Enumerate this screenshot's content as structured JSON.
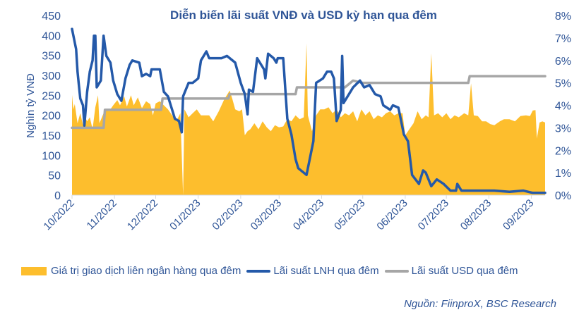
{
  "chart_data": {
    "type": "area+line",
    "title": "Diễn biến lãi suất VNĐ và USD kỳ hạn qua đêm",
    "ylabel_left": "Nghìn tỷ VNĐ",
    "ylim_left": [
      0,
      450
    ],
    "yticks_left": [
      "0",
      "50",
      "100",
      "150",
      "200",
      "250",
      "300",
      "350",
      "400",
      "450"
    ],
    "ylim_right": [
      0,
      8
    ],
    "yticks_right": [
      "0%",
      "1%",
      "2%",
      "3%",
      "4%",
      "5%",
      "6%",
      "7%",
      "8%"
    ],
    "xlim": [
      "2022-10-01",
      "2023-09-11"
    ],
    "xticks": [
      {
        "date": "2022-10-01",
        "label": "10/2022"
      },
      {
        "date": "2022-11-01",
        "label": "11/2022"
      },
      {
        "date": "2022-12-01",
        "label": "12/2022"
      },
      {
        "date": "2023-01-01",
        "label": "01/2023"
      },
      {
        "date": "2023-02-01",
        "label": "02/2023"
      },
      {
        "date": "2023-03-01",
        "label": "03/2023"
      },
      {
        "date": "2023-04-01",
        "label": "04/2023"
      },
      {
        "date": "2023-05-01",
        "label": "05/2023"
      },
      {
        "date": "2023-06-01",
        "label": "06/2023"
      },
      {
        "date": "2023-07-01",
        "label": "07/2023"
      },
      {
        "date": "2023-08-01",
        "label": "08/2023"
      },
      {
        "date": "2023-09-01",
        "label": "09/2023"
      }
    ],
    "grid": false,
    "legend_position": "bottom",
    "series": [
      {
        "name": "Giá trị giao dịch liên ngân hàng qua đêm",
        "type": "area",
        "axis": "left",
        "color": "#FDBE2D",
        "points": [
          [
            "2022-10-01",
            251
          ],
          [
            "2022-10-02",
            215
          ],
          [
            "2022-10-03",
            228
          ],
          [
            "2022-10-05",
            180
          ],
          [
            "2022-10-07",
            205
          ],
          [
            "2022-10-09",
            176
          ],
          [
            "2022-10-10",
            200
          ],
          [
            "2022-10-12",
            185
          ],
          [
            "2022-10-14",
            195
          ],
          [
            "2022-10-16",
            165
          ],
          [
            "2022-10-18",
            220
          ],
          [
            "2022-10-20",
            250
          ],
          [
            "2022-10-21",
            180
          ],
          [
            "2022-10-24",
            205
          ],
          [
            "2022-10-26",
            215
          ],
          [
            "2022-10-28",
            210
          ],
          [
            "2022-10-31",
            225
          ],
          [
            "2022-11-03",
            238
          ],
          [
            "2022-11-05",
            225
          ],
          [
            "2022-11-08",
            248
          ],
          [
            "2022-11-10",
            222
          ],
          [
            "2022-11-13",
            250
          ],
          [
            "2022-11-15",
            225
          ],
          [
            "2022-11-18",
            245
          ],
          [
            "2022-11-21",
            218
          ],
          [
            "2022-11-24",
            235
          ],
          [
            "2022-11-27",
            228
          ],
          [
            "2022-11-29",
            200
          ],
          [
            "2022-12-01",
            230
          ],
          [
            "2022-12-04",
            235
          ],
          [
            "2022-12-07",
            225
          ],
          [
            "2022-12-10",
            215
          ],
          [
            "2022-12-13",
            200
          ],
          [
            "2022-12-16",
            185
          ],
          [
            "2022-12-19",
            205
          ],
          [
            "2022-12-21",
            0
          ],
          [
            "2022-12-22",
            215
          ],
          [
            "2022-12-25",
            195
          ],
          [
            "2022-12-28",
            205
          ],
          [
            "2022-12-31",
            215
          ],
          [
            "2023-01-03",
            200
          ],
          [
            "2023-01-06",
            200
          ],
          [
            "2023-01-09",
            200
          ],
          [
            "2023-01-12",
            185
          ],
          [
            "2023-01-16",
            210
          ],
          [
            "2023-01-20",
            240
          ],
          [
            "2023-01-24",
            262
          ],
          [
            "2023-01-26",
            240
          ],
          [
            "2023-01-28",
            215
          ],
          [
            "2023-01-31",
            210
          ],
          [
            "2023-02-02",
            215
          ],
          [
            "2023-02-04",
            150
          ],
          [
            "2023-02-06",
            160
          ],
          [
            "2023-02-08",
            165
          ],
          [
            "2023-02-11",
            180
          ],
          [
            "2023-02-14",
            165
          ],
          [
            "2023-02-17",
            185
          ],
          [
            "2023-02-20",
            170
          ],
          [
            "2023-02-23",
            160
          ],
          [
            "2023-02-26",
            175
          ],
          [
            "2023-03-01",
            170
          ],
          [
            "2023-03-04",
            172
          ],
          [
            "2023-03-07",
            190
          ],
          [
            "2023-03-10",
            185
          ],
          [
            "2023-03-13",
            200
          ],
          [
            "2023-03-16",
            190
          ],
          [
            "2023-03-19",
            195
          ],
          [
            "2023-03-21",
            380
          ],
          [
            "2023-03-22",
            200
          ],
          [
            "2023-03-25",
            160
          ],
          [
            "2023-03-28",
            200
          ],
          [
            "2023-03-31",
            215
          ],
          [
            "2023-04-03",
            215
          ],
          [
            "2023-04-06",
            220
          ],
          [
            "2023-04-09",
            205
          ],
          [
            "2023-04-12",
            215
          ],
          [
            "2023-04-15",
            195
          ],
          [
            "2023-04-18",
            205
          ],
          [
            "2023-04-21",
            200
          ],
          [
            "2023-04-24",
            210
          ],
          [
            "2023-04-27",
            185
          ],
          [
            "2023-04-30",
            215
          ],
          [
            "2023-05-03",
            200
          ],
          [
            "2023-05-06",
            210
          ],
          [
            "2023-05-09",
            190
          ],
          [
            "2023-05-12",
            200
          ],
          [
            "2023-05-15",
            195
          ],
          [
            "2023-05-18",
            205
          ],
          [
            "2023-05-21",
            210
          ],
          [
            "2023-05-24",
            200
          ],
          [
            "2023-05-27",
            205
          ],
          [
            "2023-05-30",
            205
          ],
          [
            "2023-06-01",
            150
          ],
          [
            "2023-06-04",
            165
          ],
          [
            "2023-06-07",
            180
          ],
          [
            "2023-06-10",
            210
          ],
          [
            "2023-06-13",
            190
          ],
          [
            "2023-06-16",
            200
          ],
          [
            "2023-06-18",
            195
          ],
          [
            "2023-06-20",
            355
          ],
          [
            "2023-06-22",
            200
          ],
          [
            "2023-06-25",
            205
          ],
          [
            "2023-06-28",
            195
          ],
          [
            "2023-07-01",
            205
          ],
          [
            "2023-07-04",
            190
          ],
          [
            "2023-07-07",
            200
          ],
          [
            "2023-07-10",
            195
          ],
          [
            "2023-07-14",
            205
          ],
          [
            "2023-07-17",
            200
          ],
          [
            "2023-07-19",
            280
          ],
          [
            "2023-07-21",
            200
          ],
          [
            "2023-07-24",
            198
          ],
          [
            "2023-07-27",
            185
          ],
          [
            "2023-07-30",
            185
          ],
          [
            "2023-08-02",
            178
          ],
          [
            "2023-08-05",
            175
          ],
          [
            "2023-08-09",
            185
          ],
          [
            "2023-08-12",
            190
          ],
          [
            "2023-08-16",
            190
          ],
          [
            "2023-08-20",
            185
          ],
          [
            "2023-08-24",
            198
          ],
          [
            "2023-08-28",
            200
          ],
          [
            "2023-08-31",
            198
          ],
          [
            "2023-09-02",
            212
          ],
          [
            "2023-09-04",
            213
          ],
          [
            "2023-09-05",
            142
          ],
          [
            "2023-09-07",
            182
          ],
          [
            "2023-09-09",
            185
          ],
          [
            "2023-09-11",
            182
          ]
        ]
      },
      {
        "name": "Lãi suất LNH qua đêm",
        "type": "line",
        "axis": "right",
        "color": "#2459A9",
        "points": [
          [
            "2022-10-01",
            7.4
          ],
          [
            "2022-10-04",
            6.5
          ],
          [
            "2022-10-05",
            5.5
          ],
          [
            "2022-10-06",
            4.9
          ],
          [
            "2022-10-07",
            4.3
          ],
          [
            "2022-10-09",
            4.0
          ],
          [
            "2022-10-10",
            3.1
          ],
          [
            "2022-10-12",
            4.6
          ],
          [
            "2022-10-14",
            5.5
          ],
          [
            "2022-10-16",
            6.0
          ],
          [
            "2022-10-17",
            7.1
          ],
          [
            "2022-10-18",
            7.1
          ],
          [
            "2022-10-19",
            4.8
          ],
          [
            "2022-10-22",
            5.1
          ],
          [
            "2022-10-24",
            7.1
          ],
          [
            "2022-10-26",
            6.2
          ],
          [
            "2022-10-29",
            5.9
          ],
          [
            "2022-10-31",
            5.1
          ],
          [
            "2022-11-03",
            4.5
          ],
          [
            "2022-11-06",
            4.2
          ],
          [
            "2022-11-09",
            5.2
          ],
          [
            "2022-11-12",
            5.8
          ],
          [
            "2022-11-14",
            6.0
          ],
          [
            "2022-11-19",
            5.9
          ],
          [
            "2022-11-21",
            5.3
          ],
          [
            "2022-11-24",
            5.4
          ],
          [
            "2022-11-27",
            5.3
          ],
          [
            "2022-11-28",
            5.6
          ],
          [
            "2022-12-01",
            5.6
          ],
          [
            "2022-12-04",
            5.6
          ],
          [
            "2022-12-07",
            4.6
          ],
          [
            "2022-12-10",
            4.4
          ],
          [
            "2022-12-13",
            3.8
          ],
          [
            "2022-12-15",
            3.4
          ],
          [
            "2022-12-18",
            3.3
          ],
          [
            "2022-12-20",
            2.8
          ],
          [
            "2022-12-21",
            4.4
          ],
          [
            "2022-12-25",
            5.0
          ],
          [
            "2022-12-28",
            5.0
          ],
          [
            "2023-01-01",
            5.2
          ],
          [
            "2023-01-03",
            6.0
          ],
          [
            "2023-01-07",
            6.4
          ],
          [
            "2023-01-09",
            6.1
          ],
          [
            "2023-01-18",
            6.1
          ],
          [
            "2023-01-22",
            6.2
          ],
          [
            "2023-01-28",
            5.9
          ],
          [
            "2023-02-01",
            5.0
          ],
          [
            "2023-02-04",
            4.5
          ],
          [
            "2023-02-06",
            3.6
          ],
          [
            "2023-02-07",
            4.7
          ],
          [
            "2023-02-10",
            4.6
          ],
          [
            "2023-02-13",
            6.1
          ],
          [
            "2023-02-18",
            5.6
          ],
          [
            "2023-02-19",
            5.2
          ],
          [
            "2023-02-21",
            6.3
          ],
          [
            "2023-02-25",
            6.1
          ],
          [
            "2023-02-27",
            5.9
          ],
          [
            "2023-02-28",
            6.1
          ],
          [
            "2023-03-04",
            6.1
          ],
          [
            "2023-03-07",
            3.4
          ],
          [
            "2023-03-10",
            2.7
          ],
          [
            "2023-03-13",
            1.6
          ],
          [
            "2023-03-15",
            1.2
          ],
          [
            "2023-03-21",
            0.9
          ],
          [
            "2023-03-26",
            2.4
          ],
          [
            "2023-03-28",
            5.0
          ],
          [
            "2023-04-02",
            5.2
          ],
          [
            "2023-04-05",
            5.5
          ],
          [
            "2023-04-08",
            5.5
          ],
          [
            "2023-04-10",
            5.2
          ],
          [
            "2023-04-12",
            3.3
          ],
          [
            "2023-04-15",
            3.8
          ],
          [
            "2023-04-16",
            6.2
          ],
          [
            "2023-04-17",
            4.1
          ],
          [
            "2023-04-24",
            4.8
          ],
          [
            "2023-04-29",
            5.1
          ],
          [
            "2023-05-02",
            4.8
          ],
          [
            "2023-05-06",
            4.9
          ],
          [
            "2023-05-10",
            4.5
          ],
          [
            "2023-05-14",
            4.4
          ],
          [
            "2023-05-16",
            4.0
          ],
          [
            "2023-05-21",
            3.8
          ],
          [
            "2023-05-23",
            4.0
          ],
          [
            "2023-05-27",
            3.9
          ],
          [
            "2023-05-31",
            2.7
          ],
          [
            "2023-06-03",
            2.4
          ],
          [
            "2023-06-06",
            0.9
          ],
          [
            "2023-06-11",
            0.5
          ],
          [
            "2023-06-14",
            1.1
          ],
          [
            "2023-06-16",
            1.0
          ],
          [
            "2023-06-20",
            0.4
          ],
          [
            "2023-06-24",
            0.7
          ],
          [
            "2023-06-29",
            0.5
          ],
          [
            "2023-07-04",
            0.2
          ],
          [
            "2023-07-08",
            0.2
          ],
          [
            "2023-07-09",
            0.5
          ],
          [
            "2023-07-12",
            0.2
          ],
          [
            "2023-07-22",
            0.2
          ],
          [
            "2023-08-05",
            0.2
          ],
          [
            "2023-08-16",
            0.15
          ],
          [
            "2023-08-26",
            0.2
          ],
          [
            "2023-09-02",
            0.1
          ],
          [
            "2023-09-11",
            0.1
          ]
        ]
      },
      {
        "name": "Lãi suất USD qua đêm",
        "type": "line",
        "axis": "right",
        "color": "#A6A6A6",
        "points": [
          [
            "2022-10-01",
            3.0
          ],
          [
            "2022-10-24",
            3.0
          ],
          [
            "2022-10-25",
            3.8
          ],
          [
            "2022-12-05",
            3.8
          ],
          [
            "2022-12-06",
            4.3
          ],
          [
            "2023-01-23",
            4.3
          ],
          [
            "2023-01-24",
            4.5
          ],
          [
            "2023-03-13",
            4.5
          ],
          [
            "2023-03-14",
            4.8
          ],
          [
            "2023-04-18",
            4.8
          ],
          [
            "2023-04-24",
            5.1
          ],
          [
            "2023-05-01",
            5.0
          ],
          [
            "2023-07-17",
            5.0
          ],
          [
            "2023-07-18",
            5.3
          ],
          [
            "2023-09-11",
            5.3
          ]
        ]
      }
    ]
  },
  "source": "Nguồn: FiinproX, BSC Research"
}
